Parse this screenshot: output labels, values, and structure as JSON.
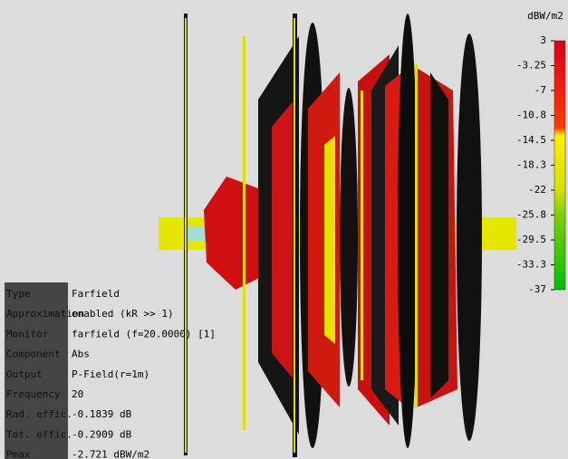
{
  "legend": {
    "unit": "dBW/m2",
    "ticks": [
      "3",
      "-3.25",
      "-7",
      "-10.8",
      "-14.5",
      "-18.3",
      "-22",
      "-25.8",
      "-29.5",
      "-33.3",
      "-37"
    ]
  },
  "info": {
    "rows": [
      [
        "Type",
        "Farfield"
      ],
      [
        "Approximation",
        "enabled (kR >> 1)"
      ],
      [
        "Monitor",
        "farfield (f=20.0000) [1]"
      ],
      [
        "Component",
        "Abs"
      ],
      [
        "Output",
        "P-Field(r=1m)"
      ],
      [
        "Frequency",
        "20"
      ],
      [
        "Rad. effic.",
        "-0.1839 dB"
      ],
      [
        "Tot. effic.",
        "-0.2909 dB"
      ],
      [
        "Pmax",
        "-2.721 dBW/m2"
      ]
    ]
  }
}
